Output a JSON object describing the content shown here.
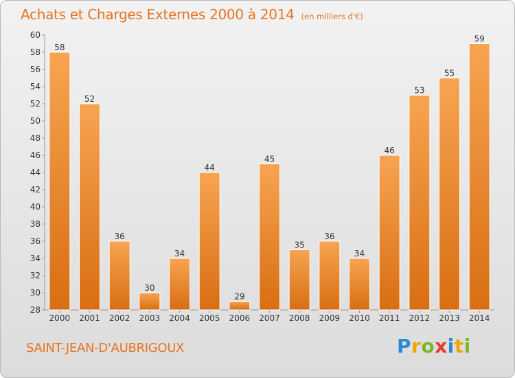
{
  "chart_data": {
    "type": "bar",
    "title": "Achats et Charges Externes 2000 à 2014",
    "unit_note": "(en milliers d'€)",
    "categories": [
      "2000",
      "2001",
      "2002",
      "2003",
      "2004",
      "2005",
      "2006",
      "2007",
      "2008",
      "2009",
      "2010",
      "2011",
      "2012",
      "2013",
      "2014"
    ],
    "values": [
      58,
      52,
      36,
      30,
      34,
      44,
      29,
      45,
      35,
      36,
      34,
      46,
      53,
      55,
      59
    ],
    "ylim": [
      28,
      60
    ],
    "yticks": [
      28,
      30,
      32,
      34,
      36,
      38,
      40,
      42,
      44,
      46,
      48,
      50,
      52,
      54,
      56,
      58,
      60
    ],
    "grid": false,
    "legend": "none",
    "colors": {
      "bar_light": "#f7a452",
      "bar_dark": "#d86e12",
      "text": "#e8731f"
    }
  },
  "footer": {
    "town": "SAINT-JEAN-D'AUBRIGOUX",
    "brand_letters": [
      {
        "char": "P",
        "color": "#2b8ad3"
      },
      {
        "char": "r",
        "color": "#f0a500"
      },
      {
        "char": "o",
        "color": "#7ab828"
      },
      {
        "char": "x",
        "color": "#e53c2a"
      },
      {
        "char": "i",
        "color": "#2b8ad3"
      },
      {
        "char": "t",
        "color": "#f0a500"
      },
      {
        "char": "i",
        "color": "#7ab828"
      }
    ]
  }
}
